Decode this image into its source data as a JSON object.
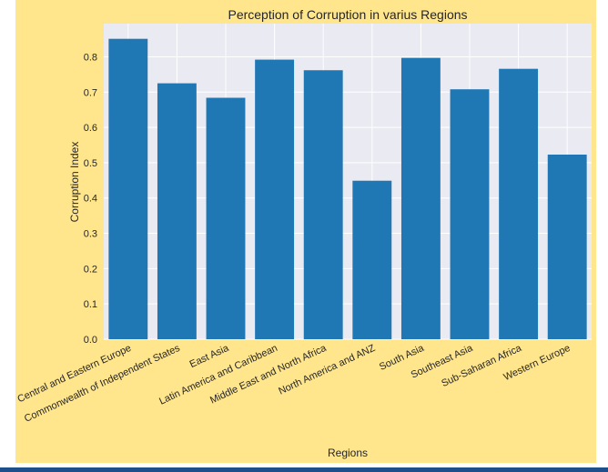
{
  "chart_data": {
    "type": "bar",
    "title": "Perception of Corruption in varius Regions",
    "xlabel": "Regions",
    "ylabel": "Corruption Index",
    "categories": [
      "Central and Eastern Europe",
      "Commonwealth of Independent States",
      "East Asia",
      "Latin America and Caribbean",
      "Middle East and North Africa",
      "North America and ANZ",
      "South Asia",
      "Southeast Asia",
      "Sub-Saharan Africa",
      "Western Europe"
    ],
    "values": [
      0.851,
      0.725,
      0.684,
      0.792,
      0.762,
      0.449,
      0.797,
      0.708,
      0.766,
      0.523
    ],
    "ylim": [
      0,
      0.894
    ],
    "yticks": [
      "0.0",
      "0.1",
      "0.2",
      "0.3",
      "0.4",
      "0.5",
      "0.6",
      "0.7",
      "0.8"
    ],
    "grid": true,
    "colors": {
      "bar": "#1f77b4",
      "plot_bg": "#eaeaf2",
      "figure_bg": "#ffe58c",
      "grid": "#ffffff"
    }
  }
}
